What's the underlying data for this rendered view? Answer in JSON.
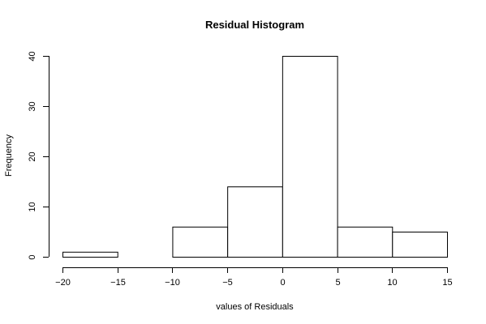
{
  "chart_data": {
    "type": "bar",
    "title": "Residual Histogram",
    "xlabel": "values of Residuals",
    "ylabel": "Frequency",
    "bins": [
      {
        "from": -20,
        "to": -15,
        "count": 1
      },
      {
        "from": -15,
        "to": -10,
        "count": 0
      },
      {
        "from": -10,
        "to": -5,
        "count": 6
      },
      {
        "from": -5,
        "to": 0,
        "count": 14
      },
      {
        "from": 0,
        "to": 5,
        "count": 40
      },
      {
        "from": 5,
        "to": 10,
        "count": 6
      },
      {
        "from": 10,
        "to": 15,
        "count": 5
      }
    ],
    "xlim": [
      -20,
      15
    ],
    "ylim": [
      0,
      40
    ],
    "x_ticks": [
      -20,
      -15,
      -10,
      -5,
      0,
      5,
      10,
      15
    ],
    "y_ticks": [
      0,
      10,
      20,
      30,
      40
    ],
    "x_tick_labels": [
      "-20",
      "-15",
      "-10",
      "-5",
      "0",
      "5",
      "10",
      "15"
    ],
    "y_tick_labels": [
      "0",
      "10",
      "20",
      "30",
      "40"
    ],
    "grid": false,
    "legend": "none"
  }
}
